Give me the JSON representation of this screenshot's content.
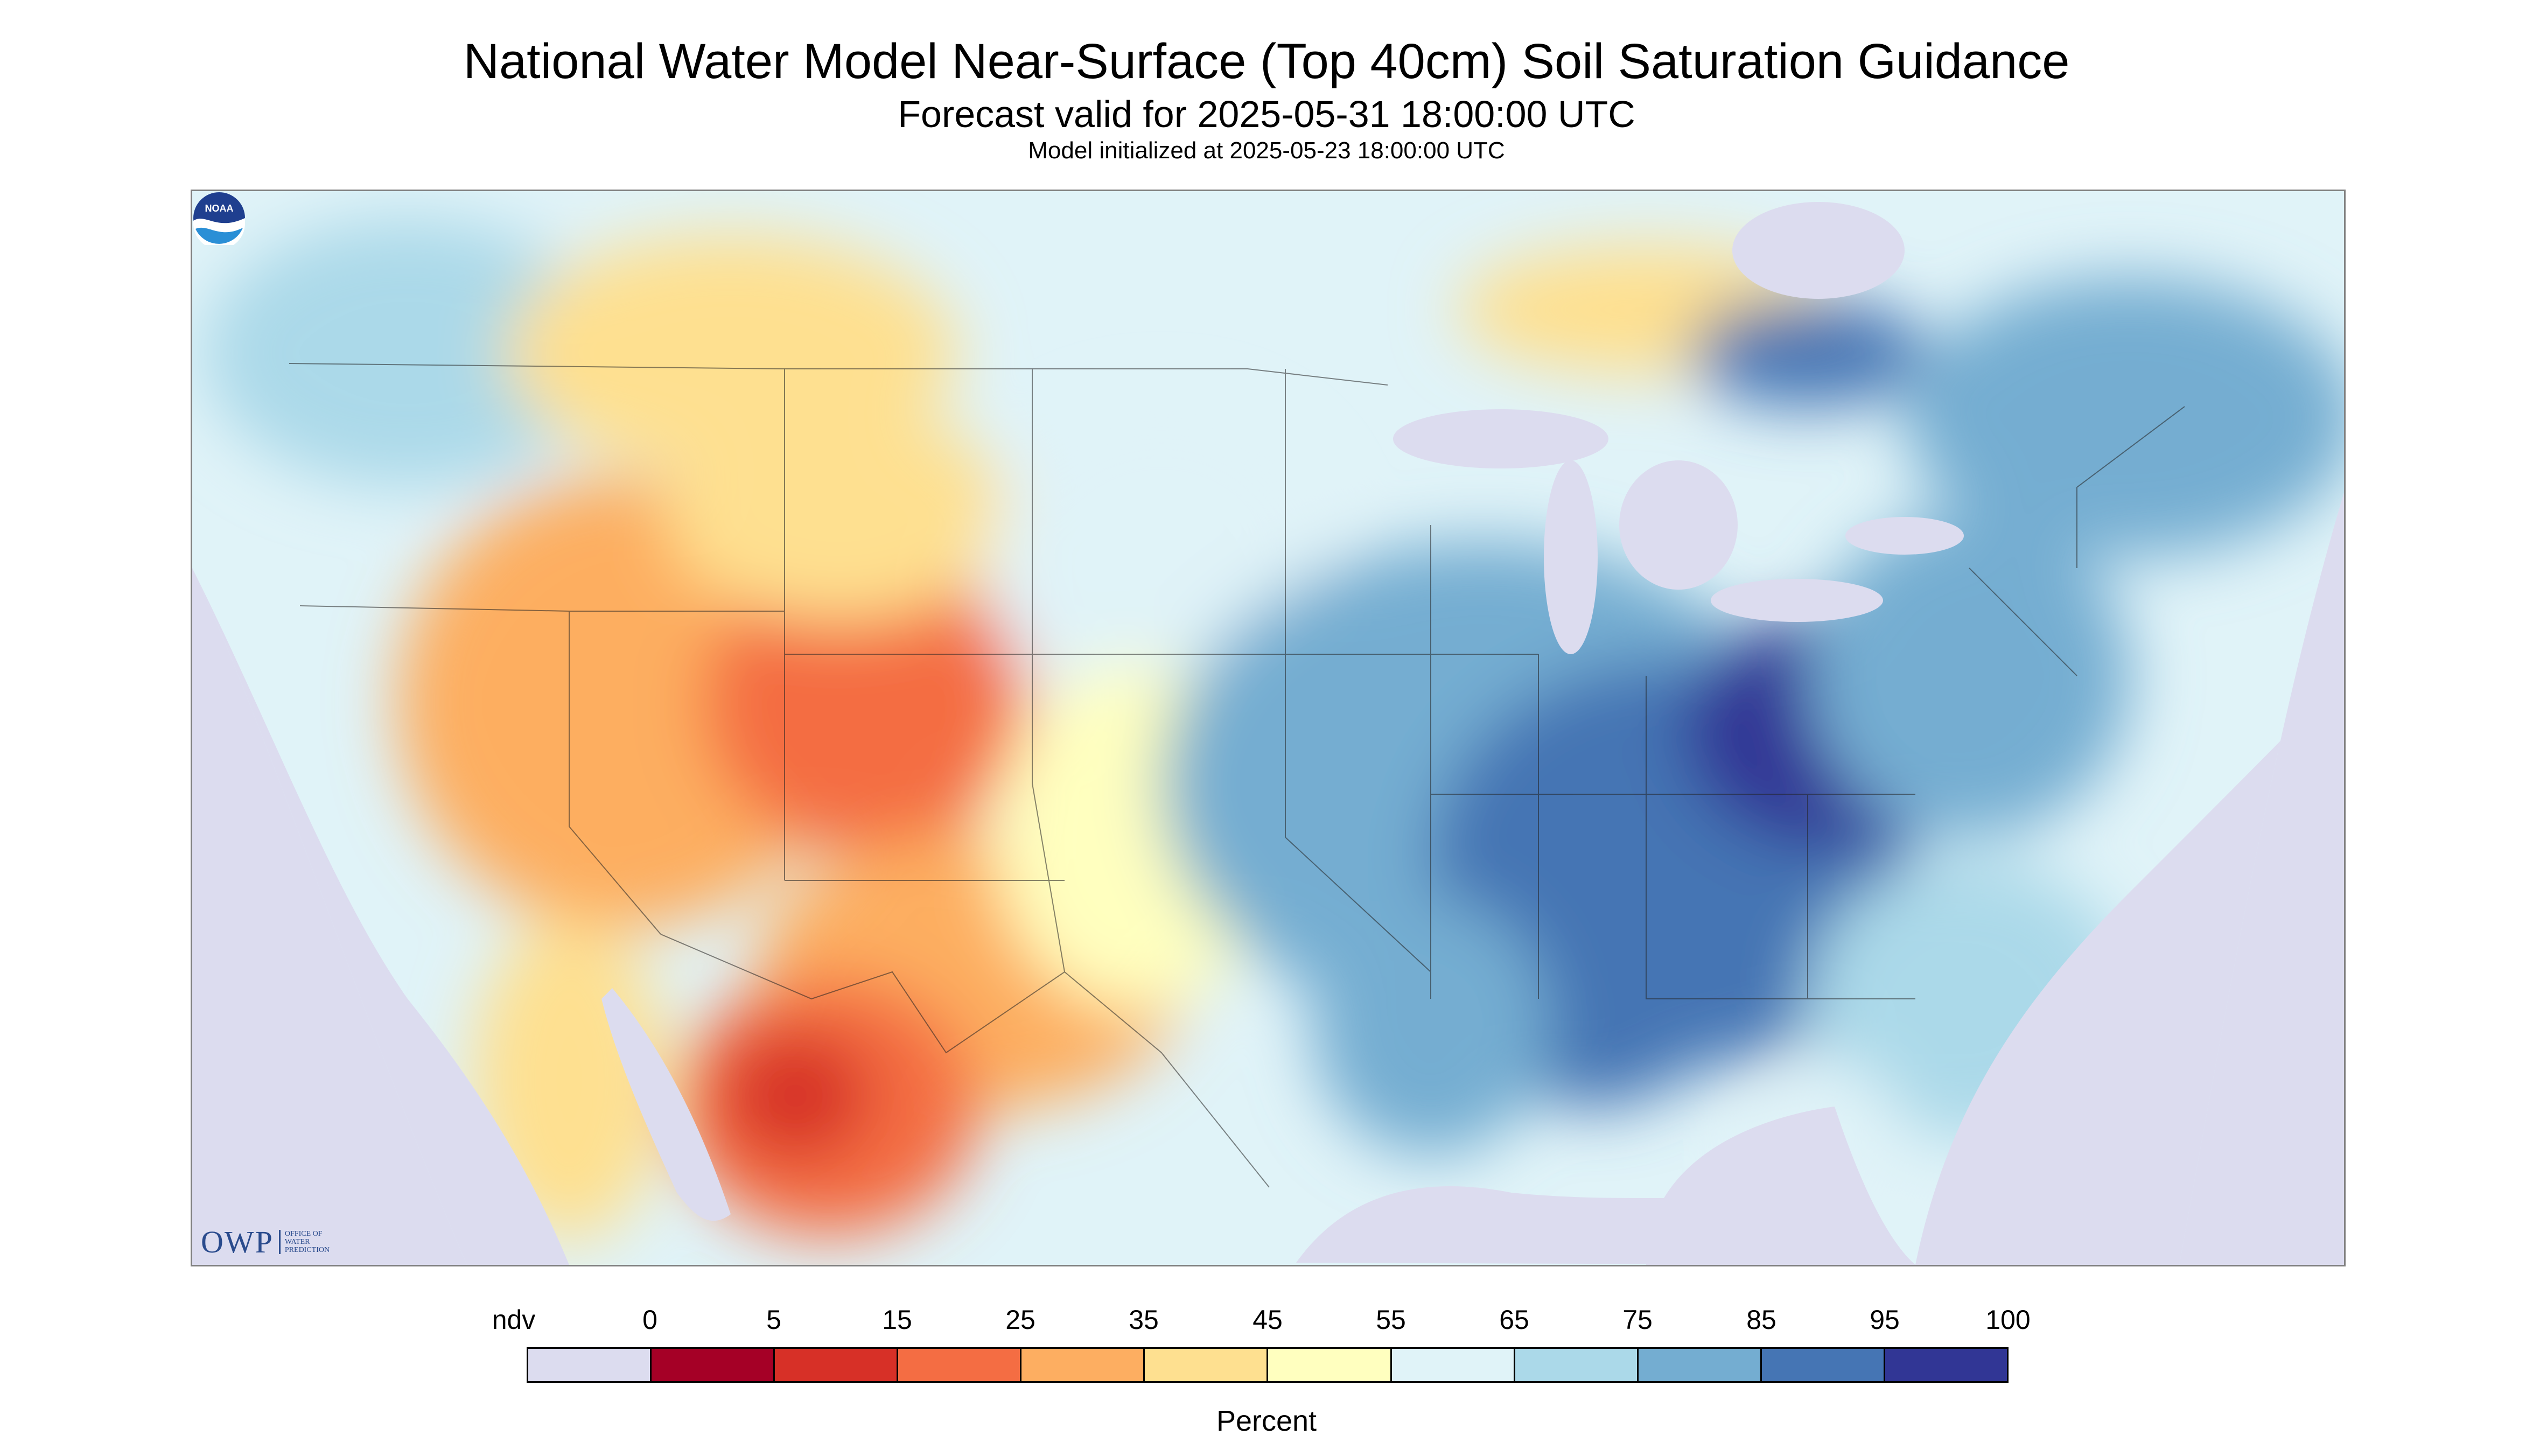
{
  "header": {
    "title": "National Water Model Near-Surface (Top 40cm) Soil Saturation Guidance",
    "forecast": "Forecast valid for 2025-05-31 18:00:00 UTC",
    "init": "Model initialized at 2025-05-23 18:00:00 UTC"
  },
  "legend": {
    "units": "Percent",
    "labels": [
      "ndv",
      "0",
      "5",
      "15",
      "25",
      "35",
      "45",
      "55",
      "65",
      "75",
      "85",
      "95",
      "100"
    ],
    "colors": [
      "#dcdcef",
      "#a50026",
      "#d73027",
      "#f46d43",
      "#fdae61",
      "#fee090",
      "#ffffbf",
      "#e0f3f8",
      "#abd9e9",
      "#74add1",
      "#4575b4",
      "#313695"
    ]
  },
  "logos": {
    "owp_text": "OWP",
    "owp_sub": [
      "OFFICE OF",
      "WATER",
      "PREDICTION"
    ],
    "noaa_text": "NOAA"
  },
  "map": {
    "background_color": "#dcdcef",
    "land_color": "#e0f3f8",
    "region_colors": {
      "southwest_dry": "#fdae61",
      "mexico_very_dry": "#d73027",
      "great_plains_moderate": "#fee090",
      "southeast_wet": "#4575b4",
      "ohio_valley_wet": "#313695",
      "northeast_moist": "#74add1"
    }
  }
}
